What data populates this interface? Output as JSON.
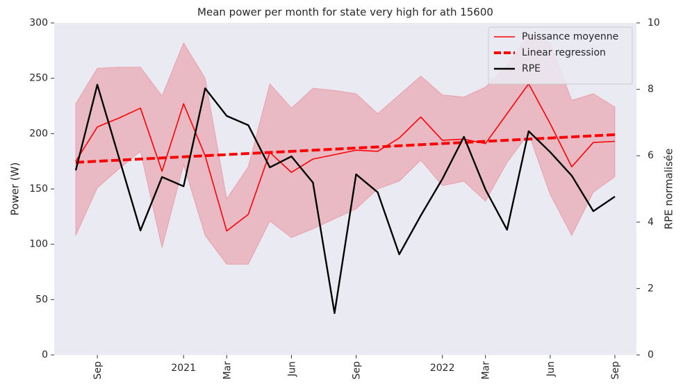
{
  "chart_data": {
    "type": "line",
    "title": "Mean power per month for state very high for ath 15600",
    "y_label": "Power (W)",
    "y2_label": "RPE normalisée",
    "x": [
      "2020-08",
      "2020-09",
      "2020-10",
      "2020-11",
      "2020-12",
      "2021-01",
      "2021-02",
      "2021-03",
      "2021-04",
      "2021-05",
      "2021-06",
      "2021-07",
      "2021-08",
      "2021-09",
      "2021-10",
      "2021-11",
      "2021-12",
      "2022-01",
      "2022-02",
      "2022-03",
      "2022-04",
      "2022-05",
      "2022-06",
      "2022-07",
      "2022-08",
      "2022-09"
    ],
    "xlim": [
      "2020-07",
      "2022-10"
    ],
    "xticks": [
      {
        "value": "2020-09",
        "label": "Sep"
      },
      {
        "value": "2021-01",
        "label": "2021"
      },
      {
        "value": "2021-03",
        "label": "Mar"
      },
      {
        "value": "2021-06",
        "label": "Jun"
      },
      {
        "value": "2021-09",
        "label": "Sep"
      },
      {
        "value": "2022-01",
        "label": "2022"
      },
      {
        "value": "2022-03",
        "label": "Mar"
      },
      {
        "value": "2022-06",
        "label": "Jun"
      },
      {
        "value": "2022-09",
        "label": "Sep"
      }
    ],
    "ylim": [
      0,
      300
    ],
    "yticks": [
      0,
      50,
      100,
      150,
      200,
      250,
      300
    ],
    "y2lim": [
      0,
      10
    ],
    "y2ticks": [
      0,
      2,
      4,
      6,
      8,
      10
    ],
    "grid": false,
    "legend": "upper right",
    "band": {
      "color": "#e8737f",
      "upper": [
        227,
        259,
        260,
        260,
        234,
        282,
        250,
        141,
        170,
        245,
        223,
        241,
        239,
        236,
        218,
        235,
        252,
        235,
        233,
        242,
        262,
        290,
        282,
        230,
        236,
        224
      ],
      "lower": [
        108,
        151,
        168,
        184,
        97,
        172,
        108,
        82,
        82,
        121,
        106,
        114,
        123,
        132,
        150,
        157,
        176,
        153,
        157,
        139,
        174,
        200,
        145,
        108,
        147,
        161
      ]
    },
    "series": [
      {
        "name": "Puissance moyenne",
        "color": "#ff0000",
        "style": "solid",
        "width": 1.6,
        "values": [
          175,
          206,
          214,
          223,
          166,
          227,
          180,
          112,
          127,
          183,
          165,
          177,
          181,
          185,
          184,
          196,
          215,
          194,
          195,
          191,
          218,
          245,
          209,
          170,
          192,
          193
        ]
      },
      {
        "name": "Linear regression",
        "color": "#ff0000",
        "style": "dashed",
        "width": 4,
        "values": [
          174,
          175,
          176,
          177,
          178,
          179,
          180,
          181,
          182,
          183,
          184,
          185,
          186,
          187,
          188,
          189,
          190,
          191,
          192,
          193,
          194,
          195,
          196,
          197,
          198,
          199
        ]
      },
      {
        "name": "RPE",
        "color": "#000000",
        "style": "solid",
        "width": 2.4,
        "axis": "y2",
        "values": [
          5.56,
          8.14,
          5.95,
          3.75,
          5.36,
          5.08,
          8.03,
          7.2,
          6.92,
          5.65,
          5.98,
          5.19,
          1.26,
          5.44,
          4.9,
          3.03,
          4.2,
          5.3,
          6.57,
          4.98,
          3.77,
          6.74,
          6.11,
          5.4,
          4.33,
          4.77
        ]
      }
    ]
  }
}
